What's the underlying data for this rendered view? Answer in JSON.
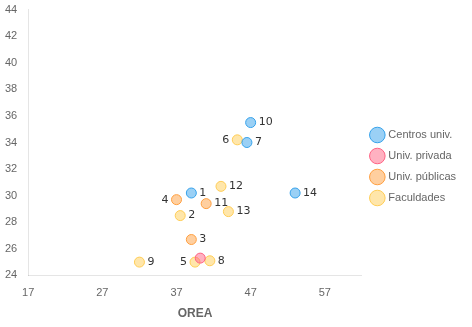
{
  "chart_data": {
    "type": "scatter",
    "xlabel": "OREA",
    "xlim": [
      17,
      62
    ],
    "ylim": [
      24,
      44
    ],
    "xticks": [
      17,
      27,
      37,
      47,
      57
    ],
    "yticks": [
      24,
      26,
      28,
      30,
      32,
      34,
      36,
      38,
      40,
      42,
      44
    ],
    "grid": false,
    "legend": "right",
    "marker": "circle",
    "series": [
      {
        "name": "Centros univ.",
        "x": [
          39,
          46.5,
          47,
          53
        ],
        "values": [
          30.2,
          34.0,
          35.5,
          30.2
        ],
        "labels": [
          "1",
          "7",
          "10",
          "14"
        ]
      },
      {
        "name": "Univ. privada",
        "x": [
          40.2
        ],
        "values": [
          25.3
        ],
        "labels": [
          null
        ]
      },
      {
        "name": "Univ. públicas",
        "x": [
          39,
          37,
          41
        ],
        "values": [
          26.7,
          29.7,
          29.4
        ],
        "labels": [
          "3",
          "4",
          "11"
        ]
      },
      {
        "name": "Faculdades",
        "x": [
          37.5,
          39.5,
          45.2,
          41.5,
          32,
          43,
          44
        ],
        "values": [
          28.5,
          25.0,
          34.2,
          25.1,
          25.0,
          30.7,
          28.8
        ],
        "labels": [
          "2",
          "5",
          "6",
          "8",
          "9",
          "12",
          "13"
        ]
      }
    ]
  }
}
